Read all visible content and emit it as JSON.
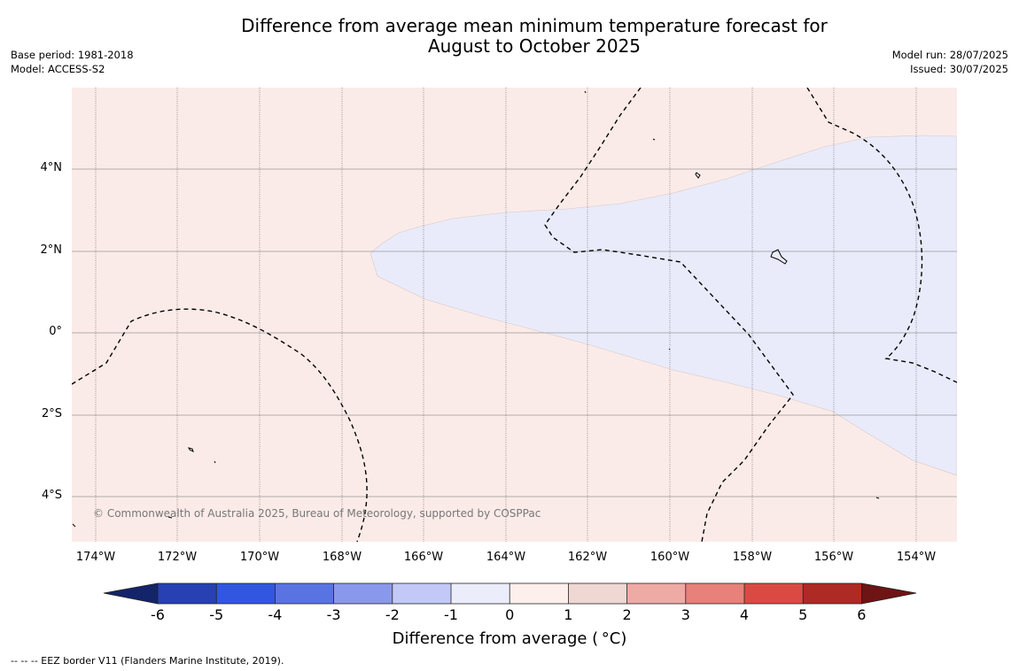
{
  "title": {
    "line1": "Difference from average mean minimum temperature forecast for",
    "line2": "August to October 2025"
  },
  "meta_left": {
    "base_period": "Base period: 1981-2018",
    "model": "Model: ACCESS-S2"
  },
  "meta_right": {
    "model_run": "Model run: 28/07/2025",
    "issued": "Issued: 30/07/2025"
  },
  "map": {
    "copyright": "© Commonwealth of Australia 2025, Bureau of Meteorology, supported by COSPPac",
    "latitude_labels": [
      "4°N",
      "2°N",
      "0°",
      "2°S",
      "4°S"
    ],
    "longitude_labels": [
      "174°W",
      "172°W",
      "170°W",
      "168°W",
      "166°W",
      "164°W",
      "162°W",
      "160°W",
      "158°W",
      "156°W",
      "154°W"
    ],
    "colors": {
      "warm_anomaly_0_to_1": "#fbebe8",
      "cool_anomaly_minus1_to_0": "#e9ebfa",
      "eez_line": "#000000",
      "gridline": "#888888"
    }
  },
  "colorbar": {
    "ticks": [
      "-6",
      "-5",
      "-4",
      "-3",
      "-2",
      "-1",
      "0",
      "1",
      "2",
      "3",
      "4",
      "5",
      "6"
    ],
    "colors": [
      "#14246b",
      "#2741b3",
      "#3157e0",
      "#5a73e3",
      "#8a98ec",
      "#c3c9f6",
      "#ecedfb",
      "#fdf0ec",
      "#efd7d3",
      "#eeaaa5",
      "#e7817a",
      "#da4a42",
      "#ae2a24",
      "#6e1414"
    ],
    "label": "Difference from average ( °C)"
  },
  "footer": {
    "legend": "--  --  -- EEZ border V11 (Flanders Marine Institute, 2019)."
  }
}
